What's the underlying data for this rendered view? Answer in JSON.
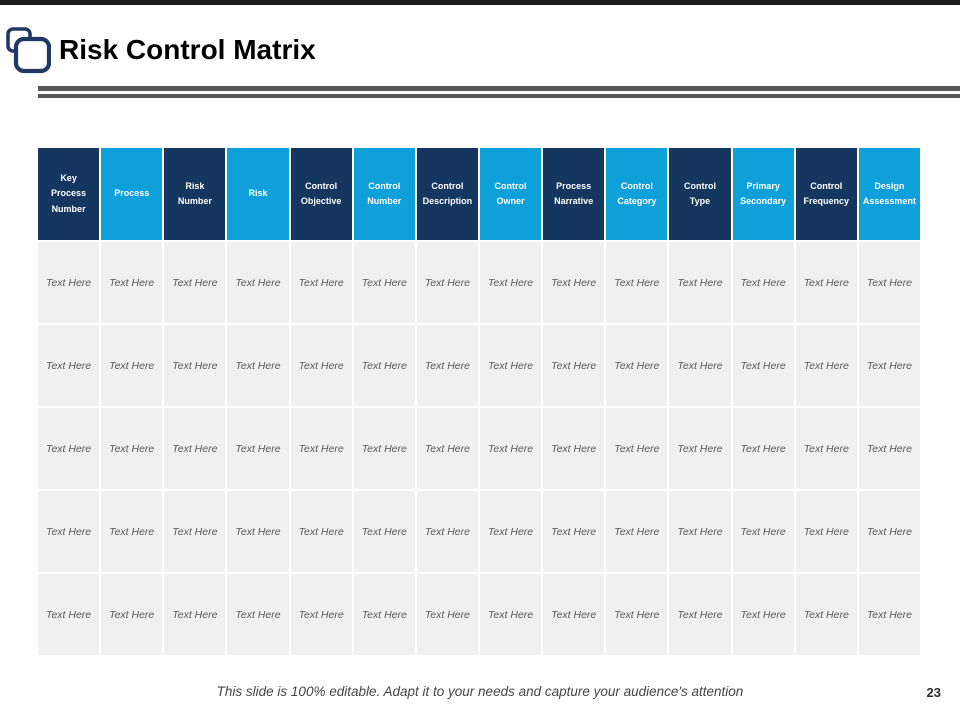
{
  "slide": {
    "title": "Risk Control Matrix",
    "footer": "This slide is 100% editable. Adapt it to your needs and capture your audience's attention",
    "page_number": "23"
  },
  "colors": {
    "header_dark": "#14365F",
    "header_light": "#0F9FD9",
    "row_background": "#F0F0F0",
    "cell_text": "#595959",
    "divider_gray": "#58585A",
    "icon_navy": "#1F3864",
    "top_bar_black": "#1C1C1C"
  },
  "icons": {
    "title_icon": "overlapping-squares-icon"
  },
  "table": {
    "headers": [
      "Key Process Number",
      "Process",
      "Risk Number",
      "Risk",
      "Control Objective",
      "Control Number",
      "Control Description",
      "Control Owner",
      "Process Narrative",
      "Control Category",
      "Control Type",
      "Primary Secondary",
      "Control Frequency",
      "Design Assessment"
    ],
    "rows": [
      [
        "Text Here",
        "Text Here",
        "Text Here",
        "Text Here",
        "Text Here",
        "Text Here",
        "Text Here",
        "Text Here",
        "Text Here",
        "Text Here",
        "Text Here",
        "Text Here",
        "Text Here",
        "Text Here"
      ],
      [
        "Text Here",
        "Text Here",
        "Text Here",
        "Text Here",
        "Text Here",
        "Text Here",
        "Text Here",
        "Text Here",
        "Text Here",
        "Text Here",
        "Text Here",
        "Text Here",
        "Text Here",
        "Text Here"
      ],
      [
        "Text Here",
        "Text Here",
        "Text Here",
        "Text Here",
        "Text Here",
        "Text Here",
        "Text Here",
        "Text Here",
        "Text Here",
        "Text Here",
        "Text Here",
        "Text Here",
        "Text Here",
        "Text Here"
      ],
      [
        "Text Here",
        "Text Here",
        "Text Here",
        "Text Here",
        "Text Here",
        "Text Here",
        "Text Here",
        "Text Here",
        "Text Here",
        "Text Here",
        "Text Here",
        "Text Here",
        "Text Here",
        "Text Here"
      ],
      [
        "Text Here",
        "Text Here",
        "Text Here",
        "Text Here",
        "Text Here",
        "Text Here",
        "Text Here",
        "Text Here",
        "Text Here",
        "Text Here",
        "Text Here",
        "Text Here",
        "Text Here",
        "Text Here"
      ]
    ]
  }
}
